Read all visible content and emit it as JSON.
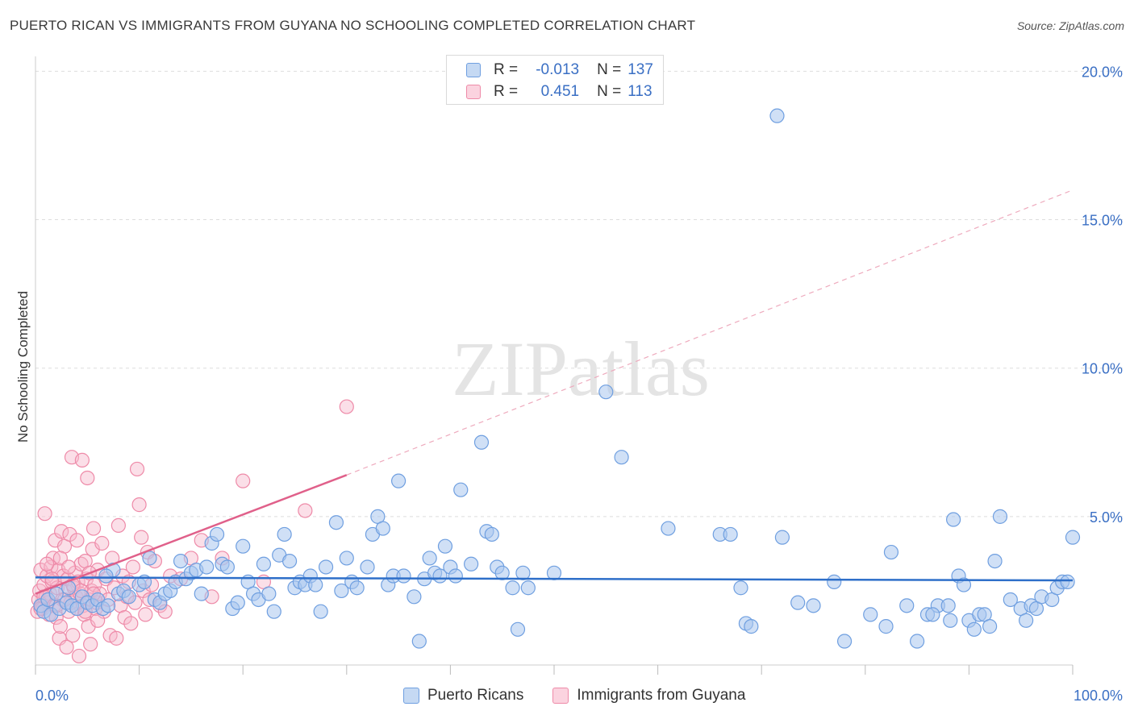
{
  "title": "PUERTO RICAN VS IMMIGRANTS FROM GUYANA NO SCHOOLING COMPLETED CORRELATION CHART",
  "source": "Source: ZipAtlas.com",
  "legend_stats": [
    {
      "series": "Puerto Ricans",
      "r_label": "R =",
      "r": "-0.013",
      "n_label": "N =",
      "n": "137"
    },
    {
      "series": "Immigrants from Guyana",
      "r_label": "R =",
      "r": "0.451",
      "n_label": "N =",
      "n": "113"
    }
  ],
  "colors": {
    "blue_fill": "#a9c6ee",
    "blue_stroke": "#6f9fe0",
    "blue_line": "#2e6fc9",
    "pink_fill": "#f6b8cb",
    "pink_stroke": "#ee8aa8",
    "pink_line": "#e0608a",
    "axis_label": "#3a6fc4",
    "grid": "#dddddd"
  },
  "watermark": "ZIPatlas",
  "chart_data": {
    "type": "scatter",
    "xlabel": "",
    "ylabel": "No Schooling Completed",
    "xlim": [
      0,
      100
    ],
    "ylim": [
      0,
      20.5
    ],
    "x_tick_labels": [
      "0.0%",
      "100.0%"
    ],
    "y_ticks": [
      5,
      10,
      15,
      20
    ],
    "y_tick_labels": [
      "5.0%",
      "10.0%",
      "15.0%",
      "20.0%"
    ],
    "grid": "horizontal dashed",
    "series": [
      {
        "name": "Puerto Ricans",
        "trend": {
          "x0": 0,
          "y0": 2.95,
          "x1": 100,
          "y1": 2.85
        },
        "points": [
          [
            0.5,
            2.0
          ],
          [
            0.8,
            1.8
          ],
          [
            1.2,
            2.2
          ],
          [
            1.5,
            1.7
          ],
          [
            2.0,
            2.4
          ],
          [
            2.3,
            1.9
          ],
          [
            3.0,
            2.1
          ],
          [
            3.5,
            2.0
          ],
          [
            4.0,
            1.9
          ],
          [
            4.5,
            2.3
          ],
          [
            5.0,
            2.1
          ],
          [
            5.5,
            2.0
          ],
          [
            6.0,
            2.2
          ],
          [
            6.5,
            1.9
          ],
          [
            7.0,
            2.0
          ],
          [
            7.5,
            3.2
          ],
          [
            8.0,
            2.4
          ],
          [
            8.5,
            2.5
          ],
          [
            9.0,
            2.3
          ],
          [
            10.0,
            2.7
          ],
          [
            10.5,
            2.8
          ],
          [
            11.0,
            3.6
          ],
          [
            11.5,
            2.2
          ],
          [
            12.0,
            2.1
          ],
          [
            12.5,
            2.4
          ],
          [
            13.0,
            2.5
          ],
          [
            13.5,
            2.8
          ],
          [
            14.0,
            3.5
          ],
          [
            14.5,
            2.9
          ],
          [
            15.0,
            3.1
          ],
          [
            15.5,
            3.2
          ],
          [
            16.0,
            2.4
          ],
          [
            16.5,
            3.3
          ],
          [
            17.0,
            4.1
          ],
          [
            17.5,
            4.4
          ],
          [
            18.0,
            3.4
          ],
          [
            18.5,
            3.3
          ],
          [
            19.0,
            1.9
          ],
          [
            19.5,
            2.1
          ],
          [
            20.0,
            4.0
          ],
          [
            20.5,
            2.8
          ],
          [
            21.0,
            2.4
          ],
          [
            21.5,
            2.2
          ],
          [
            22.0,
            3.4
          ],
          [
            22.5,
            2.4
          ],
          [
            23.0,
            1.8
          ],
          [
            23.5,
            3.7
          ],
          [
            24.0,
            4.4
          ],
          [
            24.5,
            3.5
          ],
          [
            25.0,
            2.6
          ],
          [
            25.5,
            2.8
          ],
          [
            26.0,
            2.7
          ],
          [
            26.5,
            3.0
          ],
          [
            27.0,
            2.7
          ],
          [
            27.5,
            1.8
          ],
          [
            28.0,
            3.3
          ],
          [
            29.0,
            4.8
          ],
          [
            29.5,
            2.5
          ],
          [
            30.0,
            3.6
          ],
          [
            30.5,
            2.8
          ],
          [
            31.0,
            2.6
          ],
          [
            32.0,
            3.3
          ],
          [
            32.5,
            4.4
          ],
          [
            33.0,
            5.0
          ],
          [
            33.5,
            4.6
          ],
          [
            34.0,
            2.7
          ],
          [
            34.5,
            3.0
          ],
          [
            35.0,
            6.2
          ],
          [
            35.5,
            3.0
          ],
          [
            36.5,
            2.3
          ],
          [
            37.0,
            0.8
          ],
          [
            37.5,
            2.9
          ],
          [
            38.0,
            3.6
          ],
          [
            38.5,
            3.1
          ],
          [
            39.0,
            3.0
          ],
          [
            39.5,
            4.0
          ],
          [
            40.0,
            3.3
          ],
          [
            40.5,
            3.0
          ],
          [
            41.0,
            5.9
          ],
          [
            42.0,
            3.4
          ],
          [
            43.0,
            7.5
          ],
          [
            43.5,
            4.5
          ],
          [
            44.0,
            4.4
          ],
          [
            44.5,
            3.3
          ],
          [
            45.0,
            3.1
          ],
          [
            46.0,
            2.6
          ],
          [
            46.5,
            1.2
          ],
          [
            47.0,
            3.1
          ],
          [
            47.5,
            2.6
          ],
          [
            50.0,
            3.1
          ],
          [
            55.0,
            9.2
          ],
          [
            56.5,
            7.0
          ],
          [
            61.0,
            4.6
          ],
          [
            66.0,
            4.4
          ],
          [
            67.0,
            4.4
          ],
          [
            68.0,
            2.6
          ],
          [
            68.5,
            1.4
          ],
          [
            69.0,
            1.3
          ],
          [
            71.5,
            18.5
          ],
          [
            72.0,
            4.3
          ],
          [
            73.5,
            2.1
          ],
          [
            75.0,
            2.0
          ],
          [
            77.0,
            2.8
          ],
          [
            78.0,
            0.8
          ],
          [
            82.0,
            1.3
          ],
          [
            82.5,
            3.8
          ],
          [
            84.0,
            2.0
          ],
          [
            85.0,
            0.8
          ],
          [
            86.0,
            1.7
          ],
          [
            87.0,
            2.0
          ],
          [
            88.0,
            2.0
          ],
          [
            88.5,
            4.9
          ],
          [
            89.0,
            3.0
          ],
          [
            89.5,
            2.7
          ],
          [
            90.0,
            1.5
          ],
          [
            91.0,
            1.7
          ],
          [
            91.5,
            1.7
          ],
          [
            92.0,
            1.3
          ],
          [
            92.5,
            3.5
          ],
          [
            93.0,
            5.0
          ],
          [
            94.0,
            2.2
          ],
          [
            95.0,
            1.9
          ],
          [
            95.5,
            1.5
          ],
          [
            96.0,
            2.0
          ],
          [
            96.5,
            1.9
          ],
          [
            97.0,
            2.3
          ],
          [
            98.0,
            2.2
          ],
          [
            98.5,
            2.6
          ],
          [
            99.0,
            2.8
          ],
          [
            99.5,
            2.8
          ],
          [
            100.0,
            4.3
          ],
          [
            90.5,
            1.2
          ],
          [
            88.2,
            1.5
          ],
          [
            86.5,
            1.7
          ],
          [
            80.5,
            1.7
          ],
          [
            3.2,
            2.6
          ],
          [
            6.8,
            3.0
          ]
        ]
      },
      {
        "name": "Immigrants from Guyana",
        "trend": {
          "x0": 0,
          "y0": 2.4,
          "x1": 30,
          "y1": 6.4
        },
        "trend_extended": {
          "x0": 30,
          "y0": 6.4,
          "x1": 100,
          "y1": 16.0
        },
        "points": [
          [
            0.2,
            1.8
          ],
          [
            0.3,
            2.2
          ],
          [
            0.4,
            2.5
          ],
          [
            0.5,
            3.2
          ],
          [
            0.6,
            2.0
          ],
          [
            0.7,
            1.9
          ],
          [
            0.8,
            2.7
          ],
          [
            0.9,
            5.1
          ],
          [
            1.0,
            2.3
          ],
          [
            1.1,
            3.0
          ],
          [
            1.2,
            2.1
          ],
          [
            1.3,
            1.7
          ],
          [
            1.4,
            2.4
          ],
          [
            1.5,
            3.3
          ],
          [
            1.6,
            2.8
          ],
          [
            1.7,
            3.6
          ],
          [
            1.8,
            2.0
          ],
          [
            1.9,
            4.2
          ],
          [
            2.0,
            1.6
          ],
          [
            2.1,
            2.6
          ],
          [
            2.2,
            3.2
          ],
          [
            2.3,
            0.9
          ],
          [
            2.4,
            1.3
          ],
          [
            2.5,
            4.5
          ],
          [
            2.6,
            2.2
          ],
          [
            2.7,
            3.0
          ],
          [
            2.8,
            4.0
          ],
          [
            2.9,
            2.5
          ],
          [
            3.0,
            0.6
          ],
          [
            3.1,
            2.9
          ],
          [
            3.2,
            1.8
          ],
          [
            3.3,
            4.4
          ],
          [
            3.4,
            2.1
          ],
          [
            3.5,
            7.0
          ],
          [
            3.6,
            1.0
          ],
          [
            3.7,
            2.6
          ],
          [
            3.8,
            3.1
          ],
          [
            3.9,
            2.3
          ],
          [
            4.0,
            1.9
          ],
          [
            4.1,
            2.8
          ],
          [
            4.2,
            0.3
          ],
          [
            4.3,
            2.4
          ],
          [
            4.4,
            3.4
          ],
          [
            4.5,
            6.9
          ],
          [
            4.6,
            2.0
          ],
          [
            4.7,
            1.7
          ],
          [
            4.8,
            3.5
          ],
          [
            4.9,
            2.9
          ],
          [
            5.0,
            6.3
          ],
          [
            5.1,
            1.3
          ],
          [
            5.2,
            2.2
          ],
          [
            5.3,
            0.7
          ],
          [
            5.4,
            2.5
          ],
          [
            5.5,
            3.9
          ],
          [
            5.6,
            4.6
          ],
          [
            5.7,
            2.7
          ],
          [
            5.8,
            1.9
          ],
          [
            5.9,
            2.1
          ],
          [
            6.0,
            3.2
          ],
          [
            6.2,
            2.4
          ],
          [
            6.4,
            4.1
          ],
          [
            6.6,
            1.8
          ],
          [
            6.8,
            2.9
          ],
          [
            7.0,
            2.2
          ],
          [
            7.2,
            1.0
          ],
          [
            7.4,
            3.6
          ],
          [
            7.6,
            2.6
          ],
          [
            7.8,
            0.9
          ],
          [
            8.0,
            4.7
          ],
          [
            8.2,
            2.0
          ],
          [
            8.4,
            3.0
          ],
          [
            8.6,
            1.6
          ],
          [
            8.8,
            2.3
          ],
          [
            9.0,
            2.8
          ],
          [
            9.2,
            1.4
          ],
          [
            9.4,
            3.3
          ],
          [
            9.6,
            2.1
          ],
          [
            9.8,
            6.6
          ],
          [
            10.0,
            5.4
          ],
          [
            10.2,
            4.3
          ],
          [
            10.4,
            2.5
          ],
          [
            10.6,
            1.7
          ],
          [
            10.8,
            3.8
          ],
          [
            11.0,
            2.2
          ],
          [
            11.2,
            2.7
          ],
          [
            11.5,
            3.5
          ],
          [
            12.0,
            2.0
          ],
          [
            12.5,
            1.8
          ],
          [
            13.0,
            3.0
          ],
          [
            14.0,
            2.9
          ],
          [
            15.0,
            3.6
          ],
          [
            16.0,
            4.2
          ],
          [
            17.0,
            2.3
          ],
          [
            18.0,
            3.6
          ],
          [
            20.0,
            6.2
          ],
          [
            22.0,
            2.8
          ],
          [
            26.0,
            5.2
          ],
          [
            30.0,
            8.7
          ],
          [
            0.5,
            1.9
          ],
          [
            0.8,
            2.3
          ],
          [
            1.1,
            3.4
          ],
          [
            1.6,
            2.9
          ],
          [
            2.0,
            2.0
          ],
          [
            2.4,
            3.6
          ],
          [
            2.8,
            2.2
          ],
          [
            3.2,
            3.3
          ],
          [
            3.6,
            2.7
          ],
          [
            4.0,
            4.2
          ],
          [
            4.4,
            2.5
          ],
          [
            4.8,
            1.8
          ],
          [
            5.2,
            3.1
          ],
          [
            5.6,
            2.4
          ],
          [
            6.0,
            1.5
          ]
        ]
      }
    ]
  }
}
